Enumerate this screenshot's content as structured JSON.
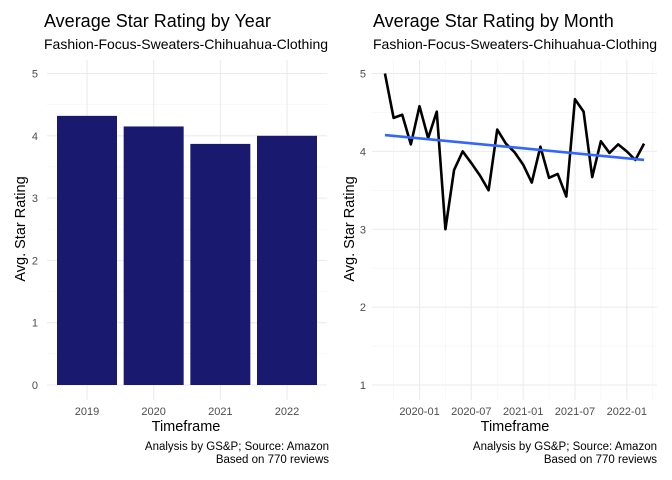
{
  "chart_data": [
    {
      "type": "bar",
      "title": "Average Star Rating by Year",
      "subtitle": "Fashion-Focus-Sweaters-Chihuahua-Clothing",
      "xlabel": "Timeframe",
      "ylabel": "Avg. Star Rating",
      "categories": [
        "2019",
        "2020",
        "2021",
        "2022"
      ],
      "values": [
        4.32,
        4.15,
        3.87,
        4.0
      ],
      "ylim": [
        0,
        5
      ],
      "yticks": [
        "0",
        "1",
        "2",
        "3",
        "4",
        "5"
      ],
      "bar_color": "#191970",
      "grid": true,
      "caption": [
        "Analysis by GS&P; Source: Amazon",
        "Based on 770 reviews"
      ]
    },
    {
      "type": "line",
      "title": "Average Star Rating by Month",
      "subtitle": "Fashion-Focus-Sweaters-Chihuahua-Clothing",
      "xlabel": "Timeframe",
      "ylabel": "Avg. Star Rating",
      "x": [
        "2019-09",
        "2019-10",
        "2019-11",
        "2019-12",
        "2020-01",
        "2020-02",
        "2020-03",
        "2020-04",
        "2020-05",
        "2020-06",
        "2020-07",
        "2020-08",
        "2020-09",
        "2020-10",
        "2020-11",
        "2020-12",
        "2021-01",
        "2021-02",
        "2021-03",
        "2021-04",
        "2021-05",
        "2021-06",
        "2021-07",
        "2021-08",
        "2021-09",
        "2021-10",
        "2021-11",
        "2021-12",
        "2022-01",
        "2022-02",
        "2022-03"
      ],
      "series": [
        {
          "values": [
            5.0,
            4.43,
            4.47,
            4.09,
            4.58,
            4.17,
            4.51,
            3.0,
            3.76,
            4.0,
            3.85,
            3.69,
            3.5,
            4.28,
            4.1,
            3.99,
            3.83,
            3.6,
            4.06,
            3.66,
            3.71,
            3.42,
            4.67,
            4.51,
            3.67,
            4.13,
            3.98,
            4.09,
            4.0,
            3.89,
            4.1
          ],
          "color": "#000000"
        }
      ],
      "trend": {
        "method": "linear",
        "start": 4.21,
        "end": 3.89,
        "color": "#3366ff"
      },
      "xticks": [
        "2020-01",
        "2020-07",
        "2021-01",
        "2021-07",
        "2022-01"
      ],
      "yticks": [
        "1",
        "2",
        "3",
        "4",
        "5"
      ],
      "ylim": [
        0.95,
        5.05
      ],
      "grid": true,
      "caption": [
        "Analysis by GS&P; Source: Amazon",
        "Based on 770 reviews"
      ]
    }
  ]
}
